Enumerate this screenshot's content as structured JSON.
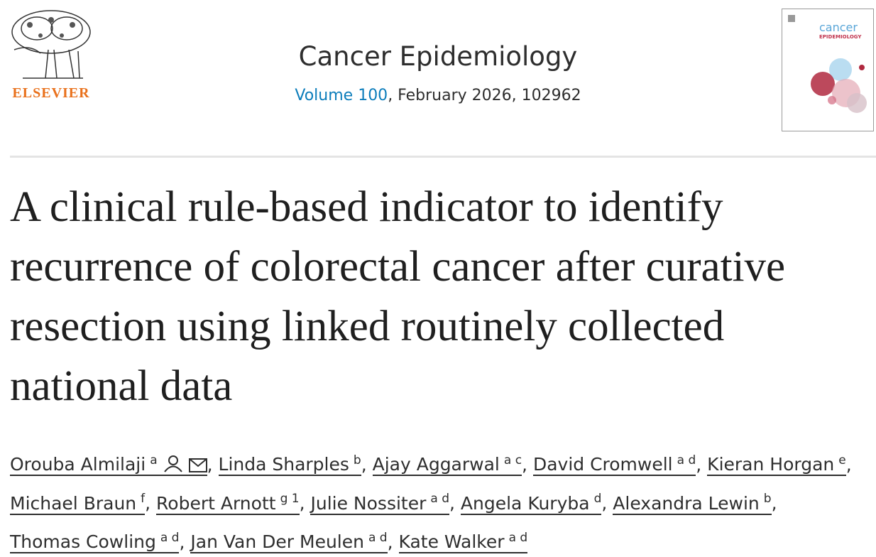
{
  "header": {
    "publisher": "ELSEVIER",
    "journal": "Cancer Epidemiology",
    "volume": "Volume 100",
    "issue_info": ", February 2026, 102962",
    "cover": {
      "title": "cancer",
      "subtitle": "EPIDEMIOLOGY"
    }
  },
  "article": {
    "title": "A clinical rule-based indicator to identify recurrence of colorectal cancer after curative resection using linked routinely collected national data",
    "authors": [
      {
        "name": "Orouba Almilaji",
        "affiliations": "a",
        "separator": ","
      },
      {
        "name": "Linda Sharples",
        "affiliations": "b",
        "separator": ","
      },
      {
        "name": "Ajay Aggarwal",
        "affiliations": "a c",
        "separator": ","
      },
      {
        "name": "David Cromwell",
        "affiliations": "a d",
        "separator": ","
      },
      {
        "name": "Kieran Horgan",
        "affiliations": "e",
        "separator": ","
      },
      {
        "name": "Michael Braun",
        "affiliations": "f",
        "separator": ","
      },
      {
        "name": "Robert Arnott",
        "affiliations": "g 1",
        "separator": ","
      },
      {
        "name": "Julie Nossiter",
        "affiliations": "a d",
        "separator": ","
      },
      {
        "name": "Angela Kuryba",
        "affiliations": "d",
        "separator": ","
      },
      {
        "name": "Alexandra Lewin",
        "affiliations": "b",
        "separator": ","
      },
      {
        "name": "Thomas Cowling",
        "affiliations": "a d",
        "separator": ","
      },
      {
        "name": "Jan Van Der Meulen",
        "affiliations": "a d",
        "separator": ","
      },
      {
        "name": "Kate Walker",
        "affiliations": "a d"
      }
    ]
  }
}
